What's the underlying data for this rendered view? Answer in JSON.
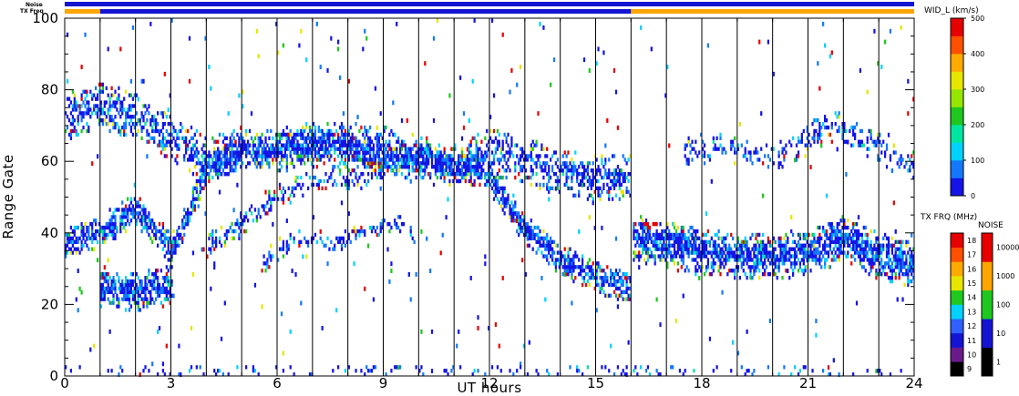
{
  "chart_data": {
    "type": "heatmap",
    "xlabel": "UT hours",
    "ylabel": "Range Gate",
    "xlim": [
      0,
      24
    ],
    "ylim": [
      0,
      100
    ],
    "x_ticks": [
      "0",
      "3",
      "6",
      "9",
      "12",
      "15",
      "18",
      "21",
      "24"
    ],
    "y_ticks": [
      "0",
      "20",
      "40",
      "60",
      "80",
      "100"
    ],
    "vertical_scan_lines_ut": [
      1,
      2,
      3,
      4,
      5,
      6,
      7,
      8,
      9,
      10,
      11,
      12,
      13,
      14,
      15,
      16,
      17,
      18,
      19,
      20,
      21,
      22,
      23
    ],
    "status_bars": [
      {
        "label": "Noise",
        "segments": [
          {
            "from": 0,
            "to": 24,
            "color": "#1414d2"
          }
        ]
      },
      {
        "label": "TX Freq",
        "segments": [
          {
            "from": 0,
            "to": 1,
            "color": "#ffa500"
          },
          {
            "from": 1,
            "to": 16,
            "color": "#1414d2"
          },
          {
            "from": 16,
            "to": 24,
            "color": "#ffa500"
          }
        ]
      }
    ],
    "colorbars": [
      {
        "title": "WID_L (km/s)",
        "ticks": [
          "0",
          "100",
          "200",
          "300",
          "400",
          "500"
        ],
        "range": [
          0,
          500
        ],
        "colors": [
          "#1414e6",
          "#1478ff",
          "#00d2ff",
          "#00e6a0",
          "#1ec81e",
          "#96e600",
          "#e6e600",
          "#ffaa00",
          "#ff5000",
          "#e60000"
        ]
      },
      {
        "title": "TX FRQ (MHz)",
        "ticks": [
          "9",
          "10",
          "11",
          "12",
          "13",
          "14",
          "15",
          "16",
          "17",
          "18"
        ],
        "colors": [
          "#000000",
          "#6a1a8a",
          "#1414d2",
          "#3060ff",
          "#00d2ff",
          "#1ec81e",
          "#e6e600",
          "#ffaa00",
          "#ff5000",
          "#e60000"
        ]
      },
      {
        "title": "NOISE",
        "ticks": [
          "1",
          "10",
          "100",
          "1000",
          "10000"
        ],
        "colors": [
          "#000000",
          "#1414d2",
          "#1ec81e",
          "#ffa500",
          "#e60000"
        ]
      }
    ],
    "structures": [
      {
        "name": "band-upper",
        "points": [
          [
            0,
            72
          ],
          [
            1,
            75
          ],
          [
            2,
            72
          ],
          [
            3,
            66
          ],
          [
            4,
            60
          ],
          [
            5,
            63
          ],
          [
            6,
            63
          ],
          [
            7,
            64
          ],
          [
            8,
            64
          ],
          [
            9,
            63
          ],
          [
            10,
            60
          ],
          [
            11,
            58
          ],
          [
            12,
            62
          ],
          [
            13,
            60
          ],
          [
            14,
            56
          ],
          [
            15,
            55
          ],
          [
            16,
            55
          ]
        ],
        "width": 6,
        "density": 0.55
      },
      {
        "name": "band-main",
        "points": [
          [
            0,
            36
          ],
          [
            1,
            40
          ],
          [
            2,
            46
          ],
          [
            3,
            35
          ],
          [
            3.5,
            45
          ],
          [
            4,
            58
          ],
          [
            5,
            62
          ],
          [
            6,
            63
          ],
          [
            7,
            64
          ],
          [
            8,
            64
          ],
          [
            9,
            60
          ],
          [
            10,
            60
          ],
          [
            11,
            58
          ],
          [
            11.8,
            57
          ],
          [
            12.5,
            48
          ],
          [
            13,
            40
          ],
          [
            14,
            32
          ],
          [
            15,
            27
          ],
          [
            16,
            24
          ]
        ],
        "width": 4,
        "density": 0.8
      },
      {
        "name": "band-low-block",
        "points": [
          [
            1,
            24
          ],
          [
            2,
            23
          ],
          [
            3,
            25
          ]
        ],
        "width": 5,
        "density": 0.85
      },
      {
        "name": "band-secondary",
        "points": [
          [
            4,
            36
          ],
          [
            5,
            42
          ],
          [
            6,
            50
          ],
          [
            7,
            54
          ],
          [
            8,
            55
          ],
          [
            9,
            56
          ]
        ],
        "width": 3,
        "density": 0.45
      },
      {
        "name": "band-night",
        "points": [
          [
            16.05,
            38
          ],
          [
            17,
            36
          ],
          [
            18,
            34
          ],
          [
            19,
            33
          ],
          [
            20,
            33
          ],
          [
            21,
            34
          ],
          [
            22,
            38
          ],
          [
            23,
            33
          ],
          [
            24,
            30
          ]
        ],
        "width": 6,
        "density": 0.85
      },
      {
        "name": "band-night-upper",
        "points": [
          [
            17.5,
            62
          ],
          [
            18.5,
            64
          ],
          [
            19.5,
            62
          ],
          [
            20.5,
            62
          ],
          [
            21.5,
            70
          ],
          [
            22.5,
            66
          ],
          [
            23.5,
            60
          ],
          [
            24,
            58
          ]
        ],
        "width": 4,
        "density": 0.35
      },
      {
        "name": "band-mid",
        "points": [
          [
            5.5,
            30
          ],
          [
            6.5,
            38
          ],
          [
            7.5,
            36
          ],
          [
            8.5,
            40
          ],
          [
            9.5,
            42
          ],
          [
            10,
            38
          ]
        ],
        "width": 2,
        "density": 0.4
      }
    ]
  }
}
